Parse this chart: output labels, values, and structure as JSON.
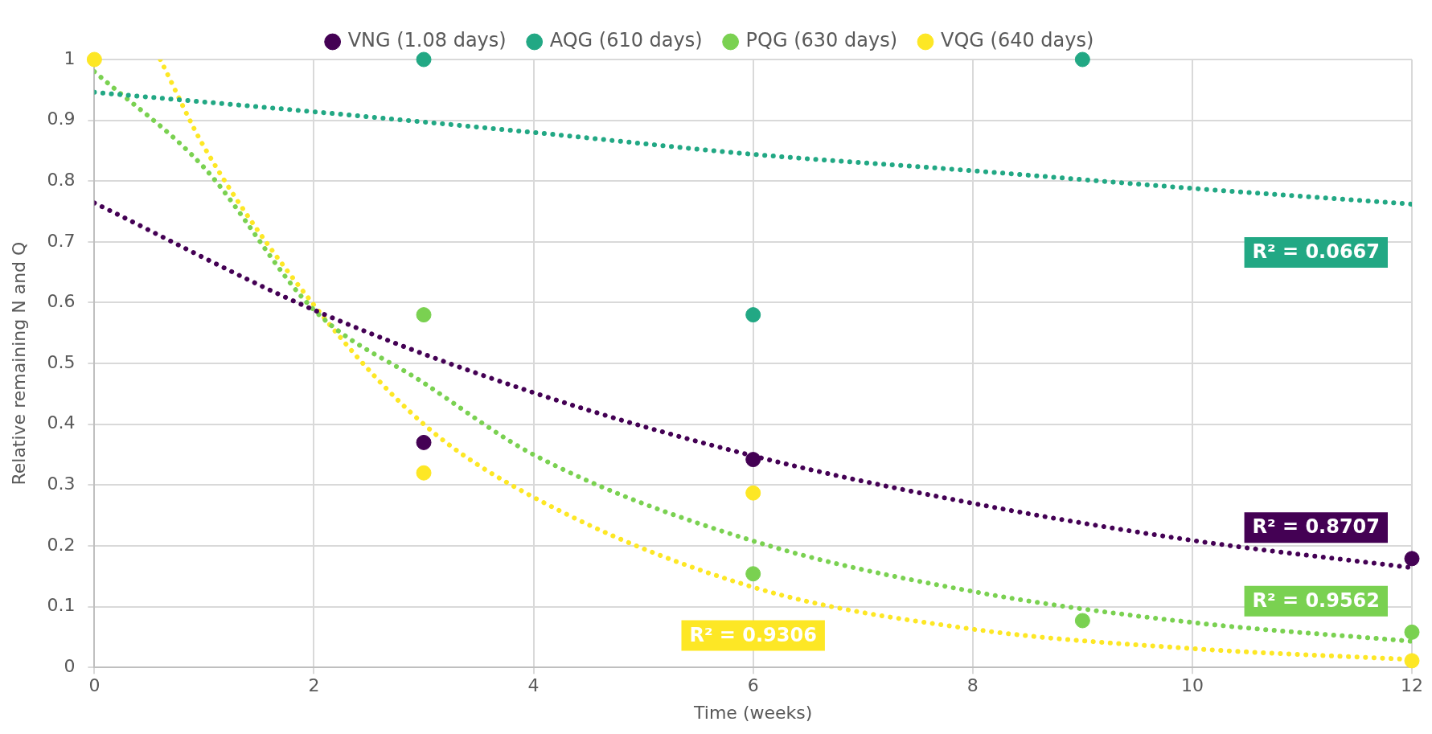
{
  "chart_data": {
    "type": "scatter",
    "xlabel": "Time (weeks)",
    "ylabel": "Relative remaining N and Q",
    "xlim": [
      0,
      12
    ],
    "xticks": [
      0,
      2,
      4,
      6,
      8,
      10,
      12
    ],
    "ylim": [
      0,
      1
    ],
    "yticks": [
      0,
      0.1,
      0.2,
      0.3,
      0.4,
      0.5,
      0.6,
      0.7,
      0.8,
      0.9,
      1
    ],
    "grid": true,
    "legend": "top",
    "marker": "circle",
    "series": [
      {
        "name": "VNG (1.08 days)",
        "color": "#440154",
        "x": [
          3,
          6,
          12
        ],
        "values": [
          0.37,
          0.342,
          0.179
        ]
      },
      {
        "name": "AQG (610 days)",
        "color": "#22a884",
        "x": [
          3,
          6,
          9
        ],
        "values": [
          1,
          0.58,
          1
        ]
      },
      {
        "name": "PQG (630 days)",
        "color": "#7ad151",
        "x": [
          3,
          6,
          9,
          12
        ],
        "values": [
          0.58,
          0.154,
          0.077,
          0.058
        ]
      },
      {
        "name": "VQG (640 days)",
        "color": "#fde725",
        "x": [
          0,
          3,
          6,
          12
        ],
        "values": [
          1,
          0.32,
          0.287,
          0.011
        ]
      },
      {
        "type": "line",
        "color": "#440154",
        "line_style": "dotted",
        "marker": "none",
        "x": [
          0,
          2,
          4,
          6,
          8,
          10,
          12
        ],
        "values": [
          0.764,
          0.588,
          0.452,
          0.348,
          0.27,
          0.209,
          0.164
        ]
      },
      {
        "type": "line",
        "color": "#22a884",
        "line_style": "dotted",
        "marker": "none",
        "x": [
          0,
          2,
          4,
          6,
          8,
          10,
          12
        ],
        "values": [
          0.946,
          0.914,
          0.88,
          0.844,
          0.817,
          0.788,
          0.762
        ]
      },
      {
        "type": "line",
        "color": "#7ad151",
        "line_style": "dotted",
        "marker": "none",
        "x": [
          0,
          1,
          2,
          3,
          4,
          6,
          8,
          10,
          12
        ],
        "values": [
          0.98,
          0.822,
          0.588,
          0.468,
          0.35,
          0.208,
          0.125,
          0.074,
          0.043
        ]
      },
      {
        "type": "line",
        "color": "#fde725",
        "line_style": "dotted",
        "marker": "none",
        "x": [
          0.6,
          1,
          2,
          3,
          4,
          6,
          8,
          10,
          12
        ],
        "values": [
          1,
          0.856,
          0.596,
          0.4,
          0.28,
          0.132,
          0.063,
          0.031,
          0.013
        ]
      }
    ],
    "annotations": [
      "R² = 0.8707",
      "R² = 0.0667",
      "R² = 0.9562",
      "R² = 0.9306"
    ]
  }
}
